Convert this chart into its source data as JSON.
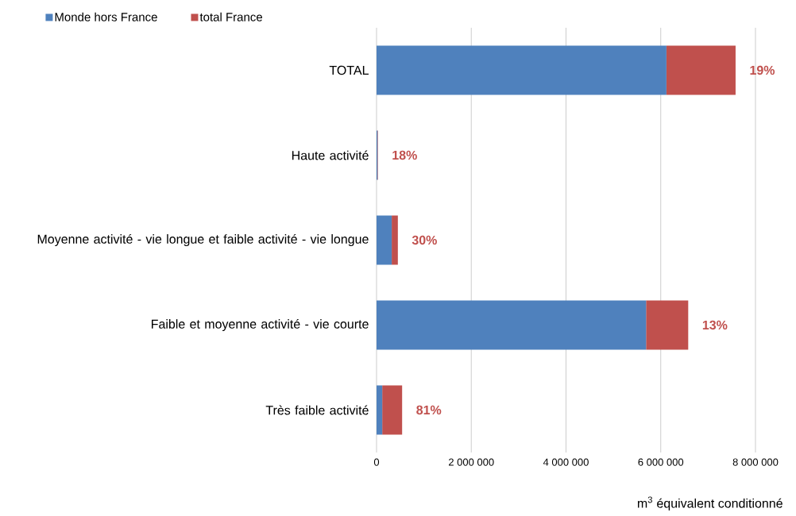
{
  "chart_data": {
    "type": "bar",
    "orientation": "horizontal",
    "stacked": true,
    "categories": [
      "TOTAL",
      "Haute activité",
      "Moyenne activité - vie longue et faible activité - vie longue",
      "Faible et moyenne activité - vie courte",
      "Très faible activité"
    ],
    "series": [
      {
        "name": "Monde hors France",
        "color": "#4f81bd",
        "values": [
          6120000,
          20000,
          320000,
          5690000,
          120000
        ]
      },
      {
        "name": "total France",
        "color": "#c0504d",
        "values": [
          1460000,
          10000,
          130000,
          890000,
          420000
        ]
      }
    ],
    "annotations": [
      {
        "text": "19%",
        "x": 7580000,
        "y": "TOTAL"
      },
      {
        "text": "18%",
        "x": 30000,
        "y": "Haute activité"
      },
      {
        "text": "30%",
        "x": 450000,
        "y": "Moyenne activité - vie longue et faible activité - vie longue"
      },
      {
        "text": "13%",
        "x": 6580000,
        "y": "Faible et moyenne activité - vie courte"
      },
      {
        "text": "81%",
        "x": 540000,
        "y": "Très faible activité"
      }
    ],
    "xlim": [
      0,
      8000000
    ],
    "xticks": [
      {
        "value": 0,
        "label": "0"
      },
      {
        "value": 2000000,
        "label": "2 000 000"
      },
      {
        "value": 4000000,
        "label": "4 000 000"
      },
      {
        "value": 6000000,
        "label": "6 000 000"
      },
      {
        "value": 8000000,
        "label": "8 000 000"
      }
    ],
    "xlabel": "m$^{3}$ équivalent conditionné",
    "grid": "x",
    "legend": "top left"
  }
}
